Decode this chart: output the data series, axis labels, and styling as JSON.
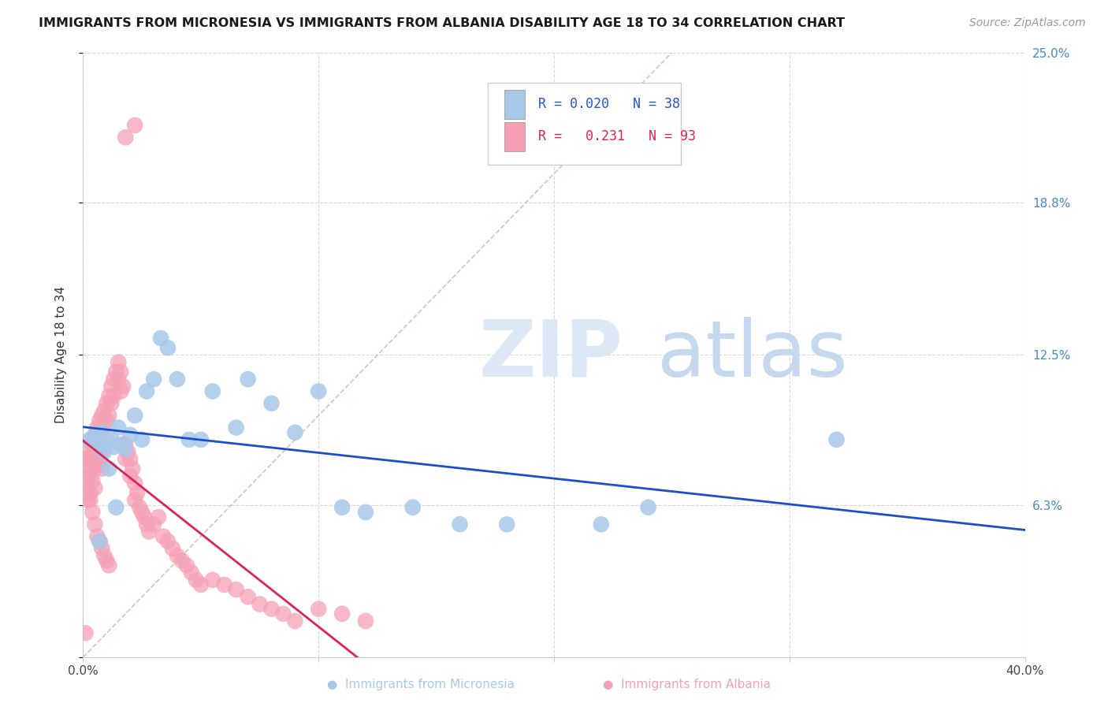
{
  "title": "IMMIGRANTS FROM MICRONESIA VS IMMIGRANTS FROM ALBANIA DISABILITY AGE 18 TO 34 CORRELATION CHART",
  "source": "Source: ZipAtlas.com",
  "ylabel": "Disability Age 18 to 34",
  "xlim": [
    0.0,
    0.4
  ],
  "ylim": [
    0.0,
    0.25
  ],
  "xticks": [
    0.0,
    0.1,
    0.2,
    0.3,
    0.4
  ],
  "xticklabels": [
    "0.0%",
    "",
    "",
    "",
    "40.0%"
  ],
  "ytick_positions": [
    0.0,
    0.063,
    0.125,
    0.188,
    0.25
  ],
  "yticklabels_right": [
    "",
    "6.3%",
    "12.5%",
    "18.8%",
    "25.0%"
  ],
  "background_color": "#ffffff",
  "grid_color": "#d8d8d8",
  "micronesia_color": "#a8c8ea",
  "albania_color": "#f5a0b5",
  "micronesia_line_color": "#1a4fcc",
  "albania_line_color": "#dd2255",
  "diagonal_line_color": "#d8b8b8",
  "legend_R_micronesia": "0.020",
  "legend_N_micronesia": "38",
  "legend_R_albania": "0.231",
  "legend_N_albania": "93",
  "mic_x": [
    0.003,
    0.005,
    0.006,
    0.008,
    0.009,
    0.01,
    0.011,
    0.012,
    0.013,
    0.015,
    0.016,
    0.018,
    0.02,
    0.022,
    0.025,
    0.027,
    0.03,
    0.033,
    0.036,
    0.04,
    0.045,
    0.05,
    0.055,
    0.065,
    0.07,
    0.08,
    0.09,
    0.1,
    0.11,
    0.12,
    0.14,
    0.16,
    0.18,
    0.22,
    0.24,
    0.32,
    0.007,
    0.014
  ],
  "mic_y": [
    0.09,
    0.092,
    0.088,
    0.093,
    0.085,
    0.088,
    0.078,
    0.09,
    0.087,
    0.095,
    0.088,
    0.086,
    0.092,
    0.1,
    0.09,
    0.11,
    0.115,
    0.132,
    0.128,
    0.115,
    0.09,
    0.09,
    0.11,
    0.095,
    0.115,
    0.105,
    0.093,
    0.11,
    0.062,
    0.06,
    0.062,
    0.055,
    0.055,
    0.055,
    0.062,
    0.09,
    0.048,
    0.062
  ],
  "alb_x": [
    0.001,
    0.001,
    0.001,
    0.002,
    0.002,
    0.002,
    0.002,
    0.003,
    0.003,
    0.003,
    0.003,
    0.004,
    0.004,
    0.004,
    0.005,
    0.005,
    0.005,
    0.005,
    0.006,
    0.006,
    0.006,
    0.007,
    0.007,
    0.007,
    0.008,
    0.008,
    0.008,
    0.008,
    0.009,
    0.009,
    0.01,
    0.01,
    0.01,
    0.011,
    0.011,
    0.012,
    0.012,
    0.013,
    0.013,
    0.014,
    0.015,
    0.015,
    0.016,
    0.016,
    0.017,
    0.018,
    0.018,
    0.019,
    0.02,
    0.02,
    0.021,
    0.022,
    0.022,
    0.023,
    0.024,
    0.025,
    0.026,
    0.027,
    0.028,
    0.03,
    0.032,
    0.034,
    0.036,
    0.038,
    0.04,
    0.042,
    0.044,
    0.046,
    0.048,
    0.05,
    0.055,
    0.06,
    0.065,
    0.07,
    0.075,
    0.08,
    0.085,
    0.09,
    0.1,
    0.11,
    0.12,
    0.003,
    0.004,
    0.005,
    0.006,
    0.007,
    0.008,
    0.009,
    0.01,
    0.011,
    0.018,
    0.022,
    0.001
  ],
  "alb_y": [
    0.082,
    0.075,
    0.068,
    0.085,
    0.078,
    0.07,
    0.065,
    0.09,
    0.082,
    0.075,
    0.068,
    0.088,
    0.08,
    0.073,
    0.092,
    0.085,
    0.078,
    0.07,
    0.095,
    0.088,
    0.08,
    0.098,
    0.09,
    0.082,
    0.1,
    0.092,
    0.085,
    0.078,
    0.102,
    0.095,
    0.105,
    0.098,
    0.09,
    0.108,
    0.1,
    0.112,
    0.105,
    0.115,
    0.108,
    0.118,
    0.122,
    0.115,
    0.118,
    0.11,
    0.112,
    0.088,
    0.082,
    0.085,
    0.082,
    0.075,
    0.078,
    0.072,
    0.065,
    0.068,
    0.062,
    0.06,
    0.058,
    0.055,
    0.052,
    0.055,
    0.058,
    0.05,
    0.048,
    0.045,
    0.042,
    0.04,
    0.038,
    0.035,
    0.032,
    0.03,
    0.032,
    0.03,
    0.028,
    0.025,
    0.022,
    0.02,
    0.018,
    0.015,
    0.02,
    0.018,
    0.015,
    0.065,
    0.06,
    0.055,
    0.05,
    0.048,
    0.045,
    0.042,
    0.04,
    0.038,
    0.215,
    0.22,
    0.01
  ]
}
